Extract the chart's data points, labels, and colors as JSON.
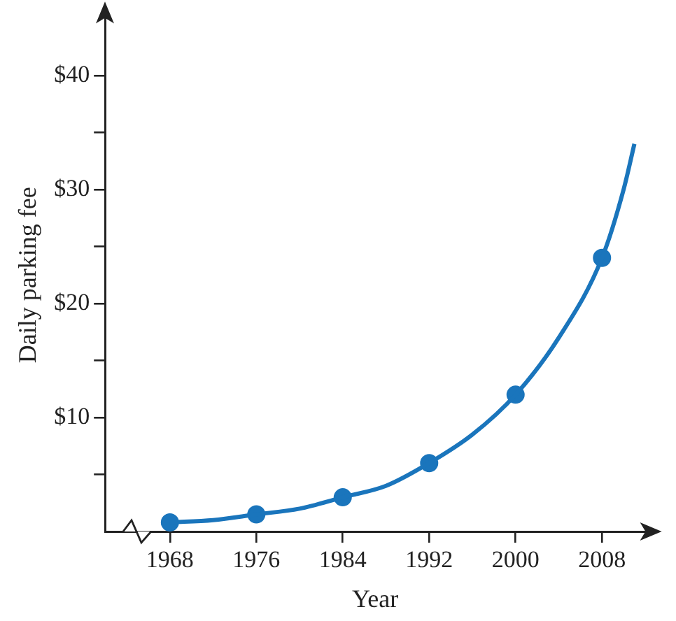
{
  "chart_data": {
    "type": "scatter",
    "xlabel": "Year",
    "ylabel": "Daily parking fee",
    "xlim": [
      1962,
      2012
    ],
    "ylim": [
      0,
      45
    ],
    "xticks": [
      1968,
      1976,
      1984,
      1992,
      2000,
      2008
    ],
    "yticks": [
      {
        "value": 5,
        "label": null
      },
      {
        "value": 10,
        "label": "$10"
      },
      {
        "value": 15,
        "label": null
      },
      {
        "value": 20,
        "label": "$20"
      },
      {
        "value": 25,
        "label": null
      },
      {
        "value": 30,
        "label": "$30"
      },
      {
        "value": 35,
        "label": null
      },
      {
        "value": 40,
        "label": "$40"
      }
    ],
    "grid": false,
    "legend": false,
    "marker": "circle",
    "series": [
      {
        "type": "line",
        "marker": "none",
        "color": "#1a75bc",
        "x": [
          1968,
          1972,
          1976,
          1980,
          1984,
          1988,
          1992,
          1996,
          2000,
          2004,
          2008,
          2010,
          2011
        ],
        "values": [
          0.8,
          1,
          1.5,
          2,
          3,
          4,
          6,
          8.5,
          12,
          17,
          24,
          30,
          34
        ]
      },
      {
        "color": "#1a75bc",
        "x": [
          1968,
          1976,
          1984,
          1992,
          2000,
          2008
        ],
        "values": [
          0.8,
          1.5,
          3,
          6,
          12,
          24
        ]
      }
    ]
  }
}
